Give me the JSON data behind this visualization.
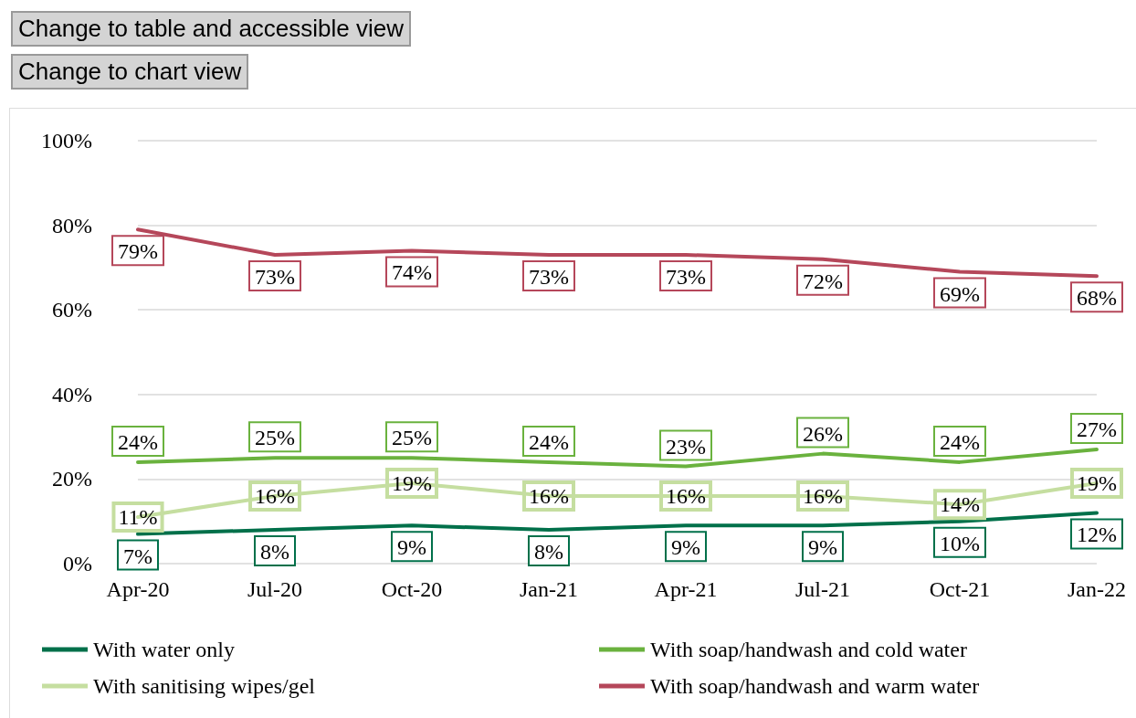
{
  "chart_data": {
    "type": "line",
    "annotations": [
      "Change to table and accessible view",
      "Change to chart view"
    ],
    "categories": [
      "Apr-20",
      "Jul-20",
      "Oct-20",
      "Jan-21",
      "Apr-21",
      "Jul-21",
      "Oct-21",
      "Jan-22"
    ],
    "series": [
      {
        "name": "With water only",
        "color": "#00704a",
        "values": [
          7,
          8,
          9,
          8,
          9,
          9,
          10,
          12
        ],
        "value_labels": [
          "7%",
          "8%",
          "9%",
          "8%",
          "9%",
          "9%",
          "10%",
          "12%"
        ]
      },
      {
        "name": "With soap/handwash and cold water",
        "color": "#6ab23e",
        "values": [
          24,
          25,
          25,
          24,
          23,
          26,
          24,
          27
        ],
        "value_labels": [
          "24%",
          "25%",
          "25%",
          "24%",
          "23%",
          "26%",
          "24%",
          "27%"
        ]
      },
      {
        "name": "With sanitising wipes/gel",
        "color": "#c5dea0",
        "values": [
          11,
          16,
          19,
          16,
          16,
          16,
          14,
          19
        ],
        "value_labels": [
          "11%",
          "16%",
          "19%",
          "16%",
          "16%",
          "16%",
          "14%",
          "19%"
        ]
      },
      {
        "name": "With soap/handwash and warm water",
        "color": "#b5475a",
        "values": [
          79,
          73,
          74,
          73,
          73,
          72,
          69,
          68
        ],
        "value_labels": [
          "79%",
          "73%",
          "74%",
          "73%",
          "73%",
          "72%",
          "69%",
          "68%"
        ]
      }
    ],
    "ylim": [
      0,
      100
    ],
    "yticks": [
      {
        "value": 0,
        "label": "0%"
      },
      {
        "value": 20,
        "label": "20%"
      },
      {
        "value": 40,
        "label": "40%"
      },
      {
        "value": 60,
        "label": "60%"
      },
      {
        "value": 80,
        "label": "80%"
      },
      {
        "value": 100,
        "label": "100%"
      }
    ],
    "grid": "y",
    "legend": "bottom",
    "marker": "none",
    "line_style": "solid"
  }
}
